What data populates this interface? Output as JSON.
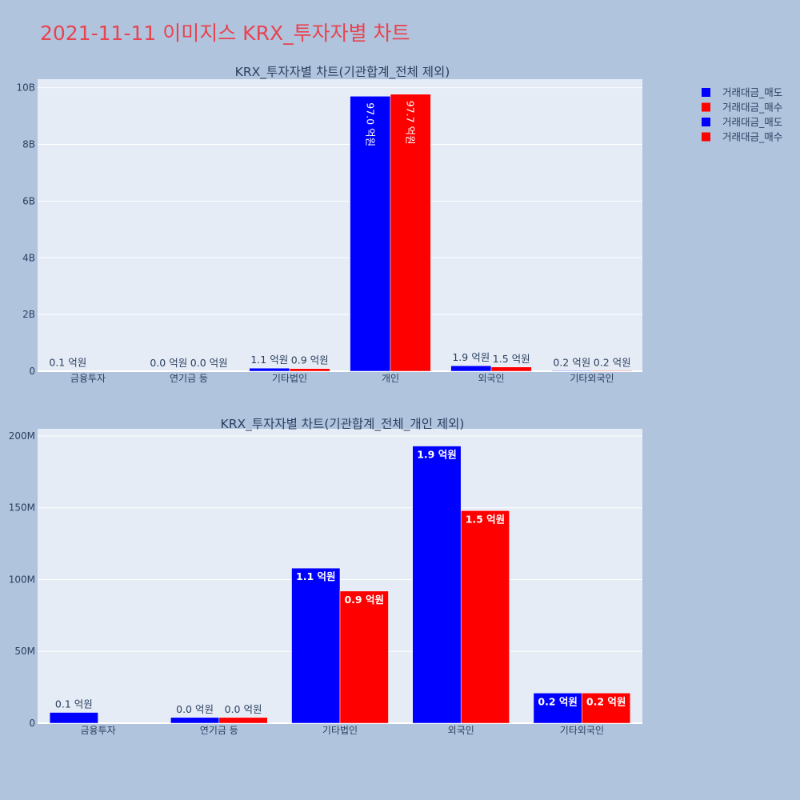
{
  "title": "2021-11-11 이미지스 KRX_투자자별 차트",
  "colors": {
    "sell": "#0000ff",
    "buy": "#ff0000",
    "plot_bg": "#e5ecf6",
    "page_bg": "#b0c4de",
    "title": "#e8434f"
  },
  "legend": [
    {
      "name": "거래대금_매도",
      "color": "#0000ff"
    },
    {
      "name": "거래대금_매수",
      "color": "#ff0000"
    },
    {
      "name": "거래대금_매도",
      "color": "#0000ff"
    },
    {
      "name": "거래대금_매수",
      "color": "#ff0000"
    }
  ],
  "chart_data": [
    {
      "type": "bar",
      "title": "KRX_투자자별 차트(기관합계_전체 제외)",
      "categories": [
        "금융투자",
        "연기금 등",
        "기타법인",
        "개인",
        "외국인",
        "기타외국인"
      ],
      "ylim": [
        0,
        10300000000
      ],
      "yticks": [
        0,
        2000000000,
        4000000000,
        6000000000,
        8000000000,
        10000000000
      ],
      "ytick_labels": [
        "0",
        "2B",
        "4B",
        "6B",
        "8B",
        "10B"
      ],
      "grid": true,
      "series": [
        {
          "name": "거래대금_매도",
          "color": "#0000ff",
          "values": [
            7500000,
            4000000,
            108000000,
            9700000000,
            193000000,
            21000000
          ],
          "labels": [
            "0.1 억원",
            "0.0 억원",
            "1.1 억원",
            "97.0 억원",
            "1.9 억원",
            "0.2 억원"
          ]
        },
        {
          "name": "거래대금_매수",
          "color": "#ff0000",
          "values": [
            0,
            4000000,
            92000000,
            9770000000,
            148000000,
            21000000
          ],
          "labels": [
            "",
            "0.0 억원",
            "0.9 억원",
            "97.7 억원",
            "1.5 억원",
            "0.2 억원"
          ]
        }
      ]
    },
    {
      "type": "bar",
      "title": "KRX_투자자별 차트(기관합계_전체_개인 제외)",
      "categories": [
        "금융투자",
        "연기금 등",
        "기타법인",
        "외국인",
        "기타외국인"
      ],
      "ylim": [
        0,
        205000000
      ],
      "yticks": [
        0,
        50000000,
        100000000,
        150000000,
        200000000
      ],
      "ytick_labels": [
        "0",
        "50M",
        "100M",
        "150M",
        "200M"
      ],
      "grid": true,
      "series": [
        {
          "name": "거래대금_매도",
          "color": "#0000ff",
          "values": [
            7500000,
            4000000,
            108000000,
            193000000,
            21000000
          ],
          "labels": [
            "0.1 억원",
            "0.0 억원",
            "1.1 억원",
            "1.9 억원",
            "0.2 억원"
          ]
        },
        {
          "name": "거래대금_매수",
          "color": "#ff0000",
          "values": [
            0,
            4000000,
            92000000,
            148000000,
            21000000
          ],
          "labels": [
            "",
            "0.0 억원",
            "0.9 억원",
            "1.5 억원",
            "0.2 억원"
          ]
        }
      ]
    }
  ]
}
